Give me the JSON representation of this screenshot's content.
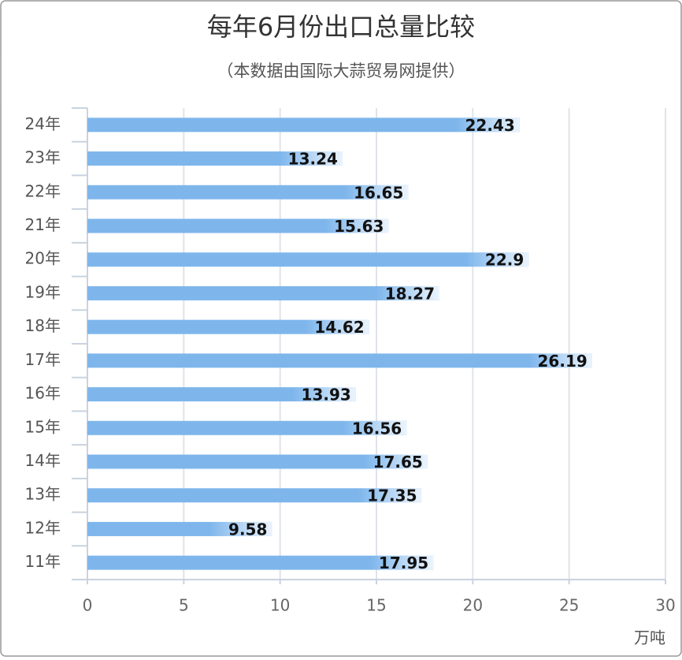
{
  "chart_data": {
    "type": "bar",
    "orientation": "horizontal",
    "title": "每年6月份出口总量比较",
    "subtitle": "（本数据由国际大蒜贸易网提供）",
    "x_label": "万吨",
    "categories": [
      "24年",
      "23年",
      "22年",
      "21年",
      "20年",
      "19年",
      "18年",
      "17年",
      "16年",
      "15年",
      "14年",
      "13年",
      "12年",
      "11年"
    ],
    "values": [
      22.43,
      13.24,
      16.65,
      15.63,
      22.9,
      18.27,
      14.62,
      26.19,
      13.93,
      16.56,
      17.65,
      17.35,
      9.58,
      17.95
    ],
    "color": "#7eb6ec",
    "xlim": [
      0,
      30
    ],
    "xticks": [
      0,
      5,
      10,
      15,
      20,
      25,
      30
    ],
    "grid": true
  }
}
